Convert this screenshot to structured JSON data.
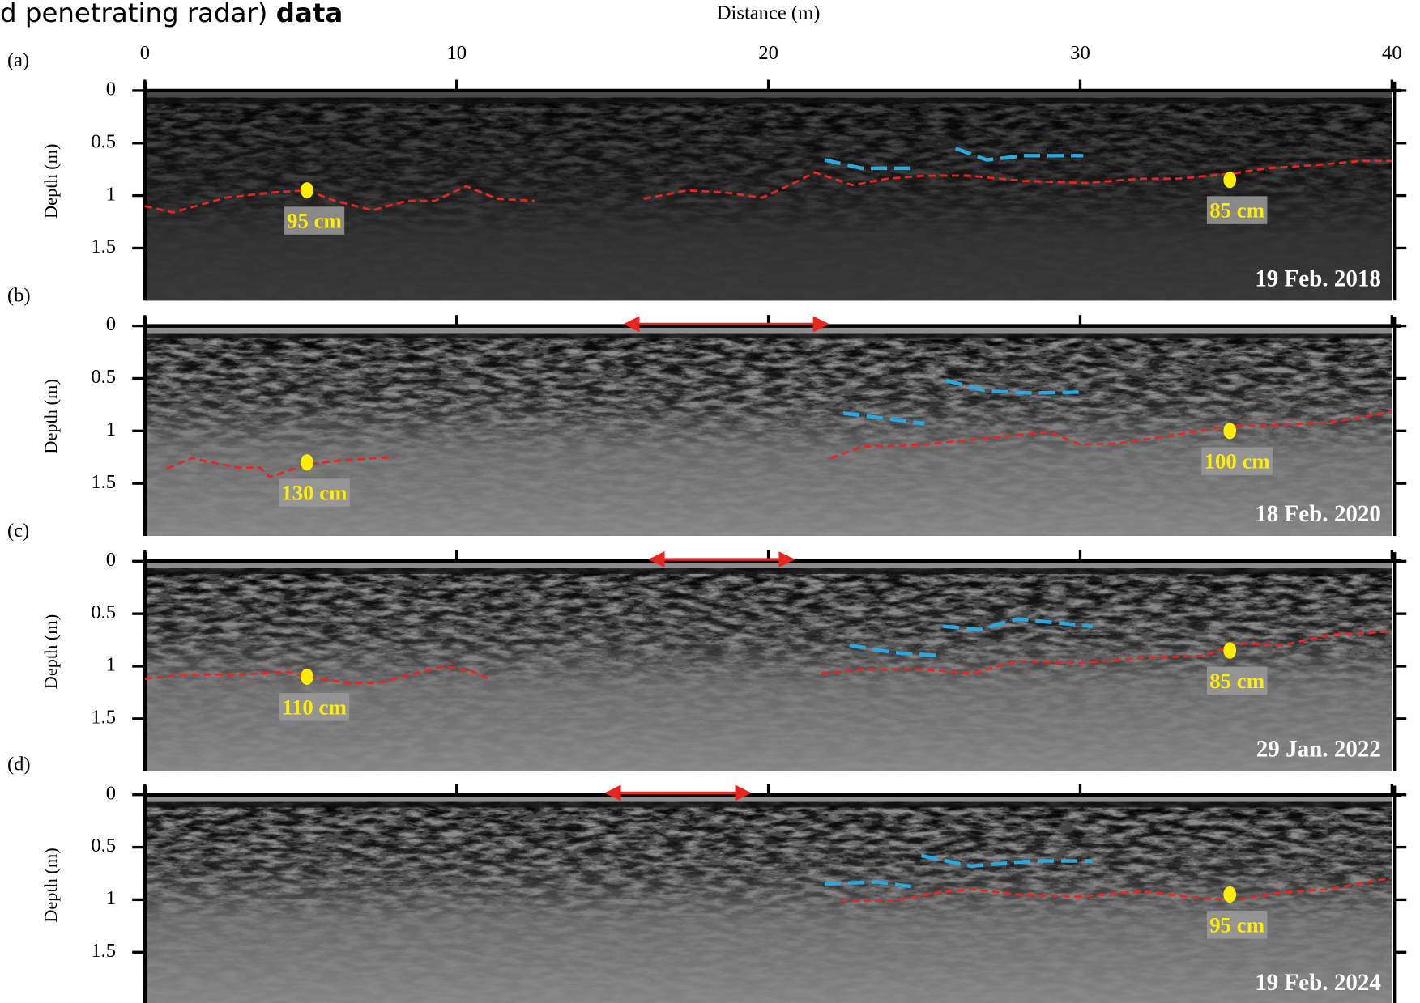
{
  "header": {
    "text": "d penetrating radar)",
    "bold": "data"
  },
  "chart_data": [
    {
      "type": "radargram",
      "panel": "(a)",
      "date": "19 Feb. 2018",
      "xlabel": "Distance (m)",
      "ylabel": "Depth (m)",
      "x_tick_labels": true,
      "xlim": [
        0,
        40
      ],
      "xticks": [
        0,
        10,
        20,
        30,
        40
      ],
      "ylim": [
        0,
        2
      ],
      "yticks": [
        0,
        0.5,
        1,
        1.5
      ],
      "series": [
        {
          "color": "#e8261f",
          "x": [
            0,
            0.9,
            2.6,
            4.1,
            5.2,
            6.1,
            7.3,
            8.4,
            9.3,
            10.3,
            11.3,
            12.5,
            14,
            16.0,
            17.4,
            18.6,
            19.8,
            20.6,
            21.5,
            22.7,
            23.8,
            25.0,
            26.4,
            28.2,
            30.2,
            31.9,
            33.1,
            34.9,
            36.0,
            37.5,
            39.0,
            40
          ],
          "values": [
            1.1,
            1.16,
            1.02,
            0.97,
            0.95,
            1.05,
            1.14,
            1.05,
            1.05,
            0.91,
            1.03,
            1.05,
            null,
            1.03,
            0.95,
            0.97,
            1.02,
            0.91,
            0.78,
            0.9,
            0.84,
            0.81,
            0.81,
            0.86,
            0.88,
            0.84,
            0.84,
            0.79,
            0.74,
            0.71,
            0.67,
            0.67
          ]
        },
        {
          "color": "#29a9e0",
          "x": [
            21.8,
            23.0,
            24.7
          ],
          "values": [
            0.66,
            0.74,
            0.74
          ]
        },
        {
          "color": "#29a9e0",
          "x": [
            26.0,
            27.0,
            28.2,
            30.1
          ],
          "values": [
            0.55,
            0.66,
            0.62,
            0.62
          ]
        }
      ],
      "points": [
        {
          "x": 5.2,
          "y": 0.95,
          "label": "95 cm"
        },
        {
          "x": 34.8,
          "y": 0.85,
          "label": "85 cm"
        }
      ]
    },
    {
      "type": "radargram",
      "panel": "(b)",
      "date": "18 Feb. 2020",
      "ylabel": "Depth (m)",
      "x_tick_labels": false,
      "xlim": [
        0,
        40
      ],
      "xticks": [
        0,
        10,
        20,
        30,
        40
      ],
      "ylim": [
        0,
        2
      ],
      "yticks": [
        0,
        0.5,
        1,
        1.5
      ],
      "arrow": [
        15.4,
        21.9
      ],
      "series": [
        {
          "color": "#e8261f",
          "x": [
            0.7,
            1.5,
            3.0,
            3.7,
            4.0,
            5.2,
            6.3,
            8.0,
            15,
            22.0,
            23,
            25,
            27,
            29,
            30,
            31.2,
            33,
            34.8,
            36,
            38,
            40
          ],
          "values": [
            1.36,
            1.26,
            1.35,
            1.35,
            1.44,
            1.32,
            1.28,
            1.25,
            null,
            1.26,
            1.15,
            1.13,
            1.07,
            1.01,
            1.13,
            1.12,
            1.04,
            0.95,
            0.95,
            0.92,
            0.82
          ]
        },
        {
          "color": "#29a9e0",
          "x": [
            22.4,
            25.0
          ],
          "values": [
            0.83,
            0.93
          ]
        },
        {
          "color": "#29a9e0",
          "x": [
            25.7,
            27,
            28.5,
            30
          ],
          "values": [
            0.52,
            0.62,
            0.64,
            0.63
          ]
        }
      ],
      "points": [
        {
          "x": 5.2,
          "y": 1.3,
          "label": "130 cm"
        },
        {
          "x": 34.8,
          "y": 1.0,
          "label": "100 cm"
        }
      ]
    },
    {
      "type": "radargram",
      "panel": "(c)",
      "date": "29 Jan. 2022",
      "ylabel": "Depth (m)",
      "x_tick_labels": false,
      "xlim": [
        0,
        40
      ],
      "xticks": [
        0,
        10,
        20,
        30,
        40
      ],
      "ylim": [
        0,
        2
      ],
      "yticks": [
        0,
        0.5,
        1,
        1.5
      ],
      "arrow": [
        16.2,
        20.8
      ],
      "series": [
        {
          "color": "#e8261f",
          "x": [
            0,
            1.2,
            3,
            4.5,
            5.2,
            6.5,
            7.5,
            8.5,
            9.6,
            10.5,
            11,
            16,
            21.7,
            23,
            25,
            26.5,
            28,
            30,
            32,
            34,
            35,
            36.5,
            38,
            40
          ],
          "values": [
            1.12,
            1.08,
            1.08,
            1.05,
            1.1,
            1.16,
            1.16,
            1.08,
            1.0,
            1.05,
            1.12,
            null,
            1.07,
            1.03,
            1.03,
            1.07,
            0.95,
            0.97,
            0.92,
            0.9,
            0.78,
            0.8,
            0.7,
            0.67
          ]
        },
        {
          "color": "#29a9e0",
          "x": [
            22.6,
            24,
            25.5
          ],
          "values": [
            0.8,
            0.87,
            0.9
          ]
        },
        {
          "color": "#29a9e0",
          "x": [
            25.6,
            26.8,
            28,
            30.4
          ],
          "values": [
            0.62,
            0.65,
            0.55,
            0.62
          ]
        }
      ],
      "points": [
        {
          "x": 5.2,
          "y": 1.1,
          "label": "110 cm"
        },
        {
          "x": 34.8,
          "y": 0.85,
          "label": "85 cm"
        }
      ]
    },
    {
      "type": "radargram",
      "panel": "(d)",
      "date": "19 Feb. 2024",
      "ylabel": "Depth (m)",
      "x_tick_labels": false,
      "xlim": [
        0,
        40
      ],
      "xticks": [
        0,
        10,
        20,
        30,
        40
      ],
      "ylim": [
        0,
        2
      ],
      "yticks": [
        0,
        0.5,
        1,
        1.5
      ],
      "arrow": [
        14.8,
        19.4
      ],
      "series": [
        {
          "color": "#e8261f",
          "x": [
            22.3,
            24,
            25.5,
            26.5,
            28,
            30,
            32,
            34,
            35,
            36.5,
            38,
            40
          ],
          "values": [
            1.01,
            1.01,
            0.93,
            0.9,
            0.95,
            0.97,
            0.92,
            0.99,
            1.0,
            0.93,
            0.9,
            0.79
          ]
        },
        {
          "color": "#29a9e0",
          "x": [
            21.8,
            23.5,
            24.7
          ],
          "values": [
            0.85,
            0.83,
            0.88
          ]
        },
        {
          "color": "#29a9e0",
          "x": [
            24.9,
            26.5,
            28.5,
            30.4
          ],
          "values": [
            0.58,
            0.68,
            0.63,
            0.63
          ]
        }
      ],
      "points": [
        {
          "x": 34.8,
          "y": 0.95,
          "label": "95 cm"
        }
      ]
    }
  ]
}
